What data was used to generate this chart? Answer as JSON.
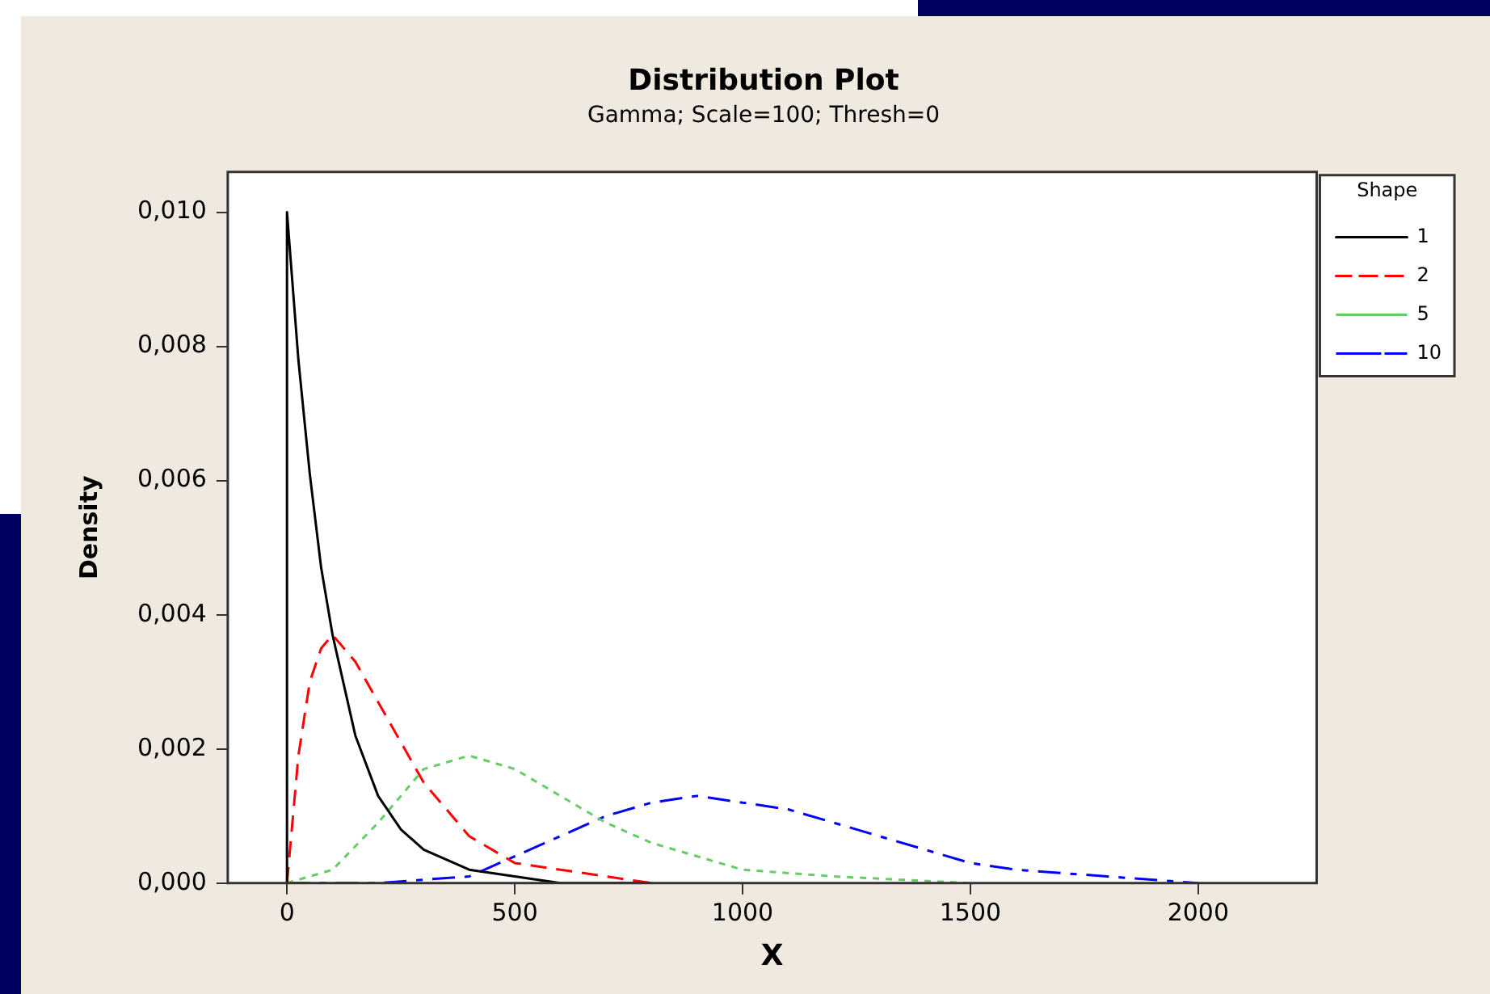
{
  "chart_data": {
    "type": "line",
    "title": "Distribution Plot",
    "subtitle": "Gamma; Scale=100; Thresh=0",
    "xlabel": "X",
    "ylabel": "Density",
    "legend_title": "Shape",
    "legend": "top right",
    "grid": false,
    "marker": "none",
    "xlim": [
      -130,
      2260
    ],
    "xticks": [
      0,
      500,
      1000,
      1500,
      2000
    ],
    "ylim": [
      0,
      0.0106
    ],
    "yticks": [
      {
        "value": 0,
        "label": "0,000"
      },
      {
        "value": 0.002,
        "label": "0,002"
      },
      {
        "value": 0.004,
        "label": "0,004"
      },
      {
        "value": 0.006,
        "label": "0,006"
      },
      {
        "value": 0.008,
        "label": "0,008"
      },
      {
        "value": 0.01,
        "label": "0,010"
      }
    ],
    "series": [
      {
        "name": "1",
        "color": "#000000",
        "line_style": "solid",
        "x": [
          0,
          0,
          25,
          50,
          75,
          100,
          150,
          200,
          250,
          300,
          400,
          500,
          600,
          800
        ],
        "values": [
          0,
          0.01,
          0.0078,
          0.0061,
          0.0047,
          0.0037,
          0.0022,
          0.0013,
          0.0008,
          0.0005,
          0.0002,
          0.0001,
          0,
          0
        ]
      },
      {
        "name": "2",
        "color": "#ff0000",
        "line_style": "dashed",
        "x": [
          0,
          25,
          50,
          75,
          100,
          150,
          200,
          300,
          400,
          500,
          600,
          800
        ],
        "values": [
          0,
          0.0019,
          0.003,
          0.0035,
          0.0037,
          0.0033,
          0.0027,
          0.0015,
          0.0007,
          0.0003,
          0.0002,
          0
        ]
      },
      {
        "name": "5",
        "color": "#66cc66",
        "line_style": "dotted",
        "x": [
          0,
          100,
          200,
          300,
          400,
          500,
          600,
          700,
          800,
          1000,
          1200,
          1500
        ],
        "values": [
          0,
          0.0002,
          0.0009,
          0.0017,
          0.0019,
          0.0017,
          0.0013,
          0.0009,
          0.0006,
          0.0002,
          0.0001,
          0
        ]
      },
      {
        "name": "10",
        "color": "#0000ff",
        "line_style": "dashdot",
        "x": [
          0,
          200,
          400,
          500,
          600,
          700,
          800,
          900,
          1000,
          1100,
          1200,
          1300,
          1400,
          1500,
          1600,
          1800,
          2000
        ],
        "values": [
          0,
          0,
          0.0001,
          0.0004,
          0.0007,
          0.001,
          0.0012,
          0.0013,
          0.0012,
          0.0011,
          0.0009,
          0.0007,
          0.0005,
          0.0003,
          0.0002,
          0.0001,
          0
        ]
      }
    ]
  }
}
